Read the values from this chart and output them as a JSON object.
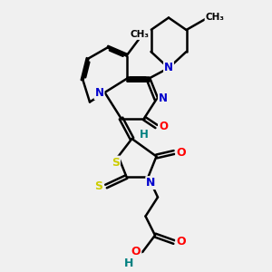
{
  "background_color": "#f0f0f0",
  "atoms": {
    "colors": {
      "C": "#000000",
      "N": "#0000cc",
      "O": "#ff0000",
      "S": "#cccc00",
      "H": "#008080"
    }
  },
  "bond_color": "#000000",
  "bond_width": 1.8,
  "figsize": [
    3.0,
    3.0
  ],
  "dpi": 100
}
